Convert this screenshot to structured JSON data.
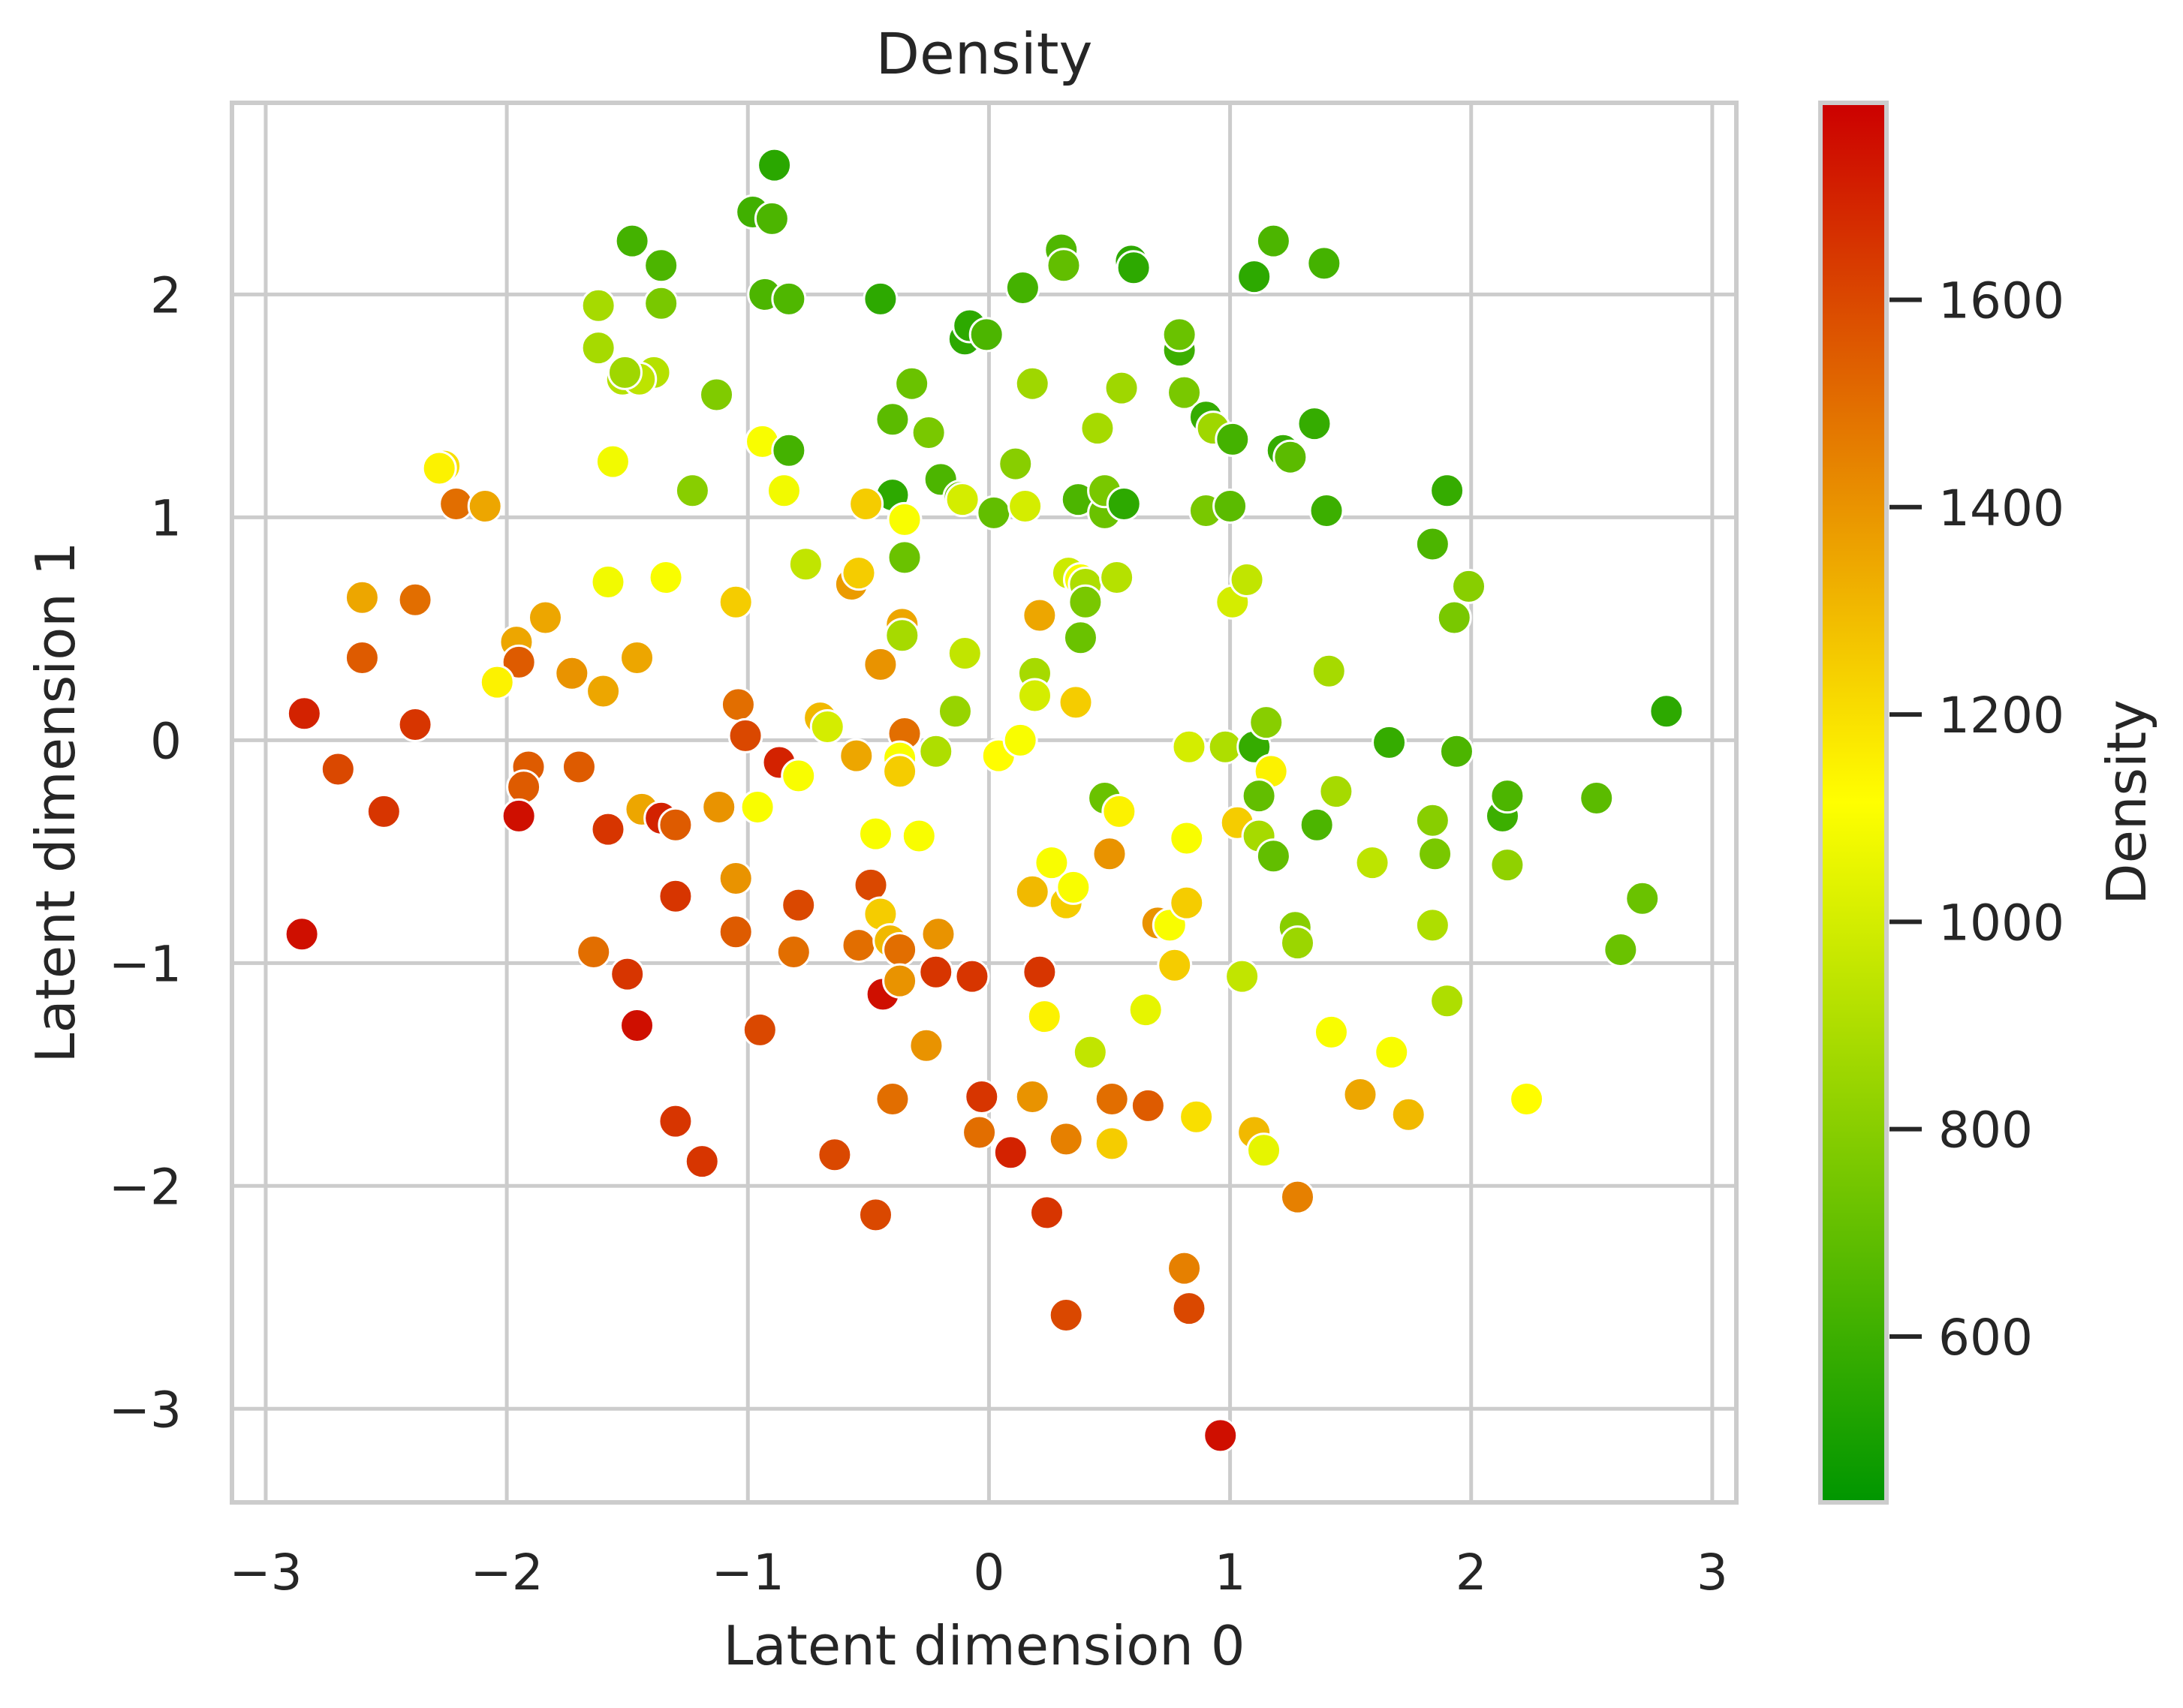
{
  "chart_data": {
    "type": "scatter",
    "title": "Density",
    "xlabel": "Latent dimension 0",
    "ylabel": "Latent dimension 1",
    "xlim": [
      -3.14,
      3.1
    ],
    "ylim": [
      -3.42,
      2.86
    ],
    "xticks": [
      -3,
      -2,
      -1,
      0,
      1,
      2,
      3
    ],
    "xtick_labels": [
      "−3",
      "−2",
      "−1",
      "0",
      "1",
      "2",
      "3"
    ],
    "yticks": [
      -3,
      -2,
      -1,
      0,
      1,
      2
    ],
    "ytick_labels": [
      "−3",
      "−2",
      "−1",
      "0",
      "1",
      "2"
    ],
    "grid": true,
    "colorbar": {
      "label": "Density",
      "range": [
        440,
        1790
      ],
      "ticks": [
        600,
        800,
        1000,
        1200,
        1400,
        1600
      ],
      "tick_labels": [
        "600",
        "800",
        "1000",
        "1200",
        "1400",
        "1600"
      ],
      "colors": [
        "#009600",
        "#ffff00",
        "#cc0000"
      ]
    },
    "series": [
      {
        "points": [
          [
            -0.89,
            2.58,
            550
          ],
          [
            -0.98,
            2.37,
            610
          ],
          [
            -0.9,
            2.34,
            640
          ],
          [
            -1.48,
            2.24,
            620
          ],
          [
            -1.36,
            2.13,
            640
          ],
          [
            -0.93,
            2.0,
            640
          ],
          [
            -0.83,
            1.98,
            650
          ],
          [
            -1.36,
            1.96,
            760
          ],
          [
            -1.62,
            1.95,
            880
          ],
          [
            -0.45,
            1.98,
            560
          ],
          [
            0.3,
            2.2,
            650
          ],
          [
            0.31,
            2.13,
            700
          ],
          [
            0.59,
            2.15,
            560
          ],
          [
            0.6,
            2.12,
            560
          ],
          [
            1.1,
            2.08,
            560
          ],
          [
            1.18,
            2.24,
            640
          ],
          [
            1.39,
            2.14,
            620
          ],
          [
            0.14,
            2.03,
            620
          ],
          [
            -0.1,
            1.8,
            560
          ],
          [
            -0.08,
            1.86,
            560
          ],
          [
            -0.01,
            1.82,
            640
          ],
          [
            -1.62,
            1.76,
            880
          ],
          [
            -1.52,
            1.62,
            920
          ],
          [
            -1.39,
            1.65,
            920
          ],
          [
            -1.45,
            1.62,
            940
          ],
          [
            -1.51,
            1.65,
            860
          ],
          [
            -1.13,
            1.55,
            780
          ],
          [
            -0.32,
            1.6,
            720
          ],
          [
            0.18,
            1.6,
            860
          ],
          [
            0.55,
            1.58,
            860
          ],
          [
            0.79,
            1.75,
            600
          ],
          [
            0.79,
            1.82,
            720
          ],
          [
            0.81,
            1.56,
            760
          ],
          [
            -0.4,
            1.44,
            680
          ],
          [
            -0.25,
            1.38,
            760
          ],
          [
            0.45,
            1.4,
            880
          ],
          [
            0.9,
            1.45,
            580
          ],
          [
            0.93,
            1.4,
            860
          ],
          [
            1.01,
            1.35,
            620
          ],
          [
            1.22,
            1.3,
            580
          ],
          [
            1.25,
            1.27,
            680
          ],
          [
            1.35,
            1.42,
            580
          ],
          [
            -2.26,
            1.23,
            1200
          ],
          [
            -2.28,
            1.22,
            1150
          ],
          [
            -2.21,
            1.06,
            1500
          ],
          [
            -2.09,
            1.05,
            1350
          ],
          [
            -1.56,
            1.25,
            1080
          ],
          [
            -1.23,
            1.12,
            800
          ],
          [
            -0.94,
            1.34,
            1100
          ],
          [
            -0.83,
            1.3,
            620
          ],
          [
            -0.85,
            1.12,
            1080
          ],
          [
            -0.2,
            1.17,
            640
          ],
          [
            -0.4,
            1.1,
            560
          ],
          [
            -0.51,
            1.06,
            1250
          ],
          [
            -0.35,
            0.99,
            1100
          ],
          [
            -0.12,
            1.09,
            700
          ],
          [
            -0.11,
            1.08,
            1000
          ],
          [
            0.02,
            1.02,
            700
          ],
          [
            0.11,
            1.24,
            800
          ],
          [
            0.15,
            1.05,
            1000
          ],
          [
            0.37,
            1.08,
            640
          ],
          [
            0.48,
            1.02,
            720
          ],
          [
            0.48,
            1.12,
            760
          ],
          [
            0.56,
            1.06,
            560
          ],
          [
            0.9,
            1.03,
            760
          ],
          [
            1.0,
            1.05,
            680
          ],
          [
            1.4,
            1.03,
            600
          ],
          [
            1.9,
            1.12,
            580
          ],
          [
            1.84,
            0.88,
            640
          ],
          [
            1.99,
            0.69,
            800
          ],
          [
            1.93,
            0.55,
            760
          ],
          [
            1.41,
            0.31,
            880
          ],
          [
            -2.6,
            0.64,
            1350
          ],
          [
            -2.38,
            0.63,
            1500
          ],
          [
            -1.58,
            0.71,
            1080
          ],
          [
            -1.34,
            0.73,
            1100
          ],
          [
            -1.84,
            0.55,
            1350
          ],
          [
            -1.96,
            0.44,
            1350
          ],
          [
            -1.95,
            0.35,
            1550
          ],
          [
            -2.04,
            0.26,
            1150
          ],
          [
            -1.46,
            0.37,
            1350
          ],
          [
            -1.6,
            0.22,
            1350
          ],
          [
            -1.73,
            0.3,
            1400
          ],
          [
            -2.6,
            0.37,
            1550
          ],
          [
            -2.84,
            0.12,
            1700
          ],
          [
            -2.38,
            0.07,
            1650
          ],
          [
            -1.05,
            0.62,
            1250
          ],
          [
            -0.76,
            0.79,
            950
          ],
          [
            -0.57,
            0.7,
            1380
          ],
          [
            -0.54,
            0.75,
            1250
          ],
          [
            -0.35,
            0.82,
            720
          ],
          [
            -0.36,
            0.52,
            1350
          ],
          [
            -0.36,
            0.47,
            880
          ],
          [
            -0.1,
            0.39,
            950
          ],
          [
            -0.45,
            0.34,
            1400
          ],
          [
            -0.14,
            0.13,
            840
          ],
          [
            0.33,
            0.75,
            980
          ],
          [
            0.38,
            0.72,
            1100
          ],
          [
            0.4,
            0.7,
            900
          ],
          [
            0.4,
            0.62,
            760
          ],
          [
            0.53,
            0.73,
            920
          ],
          [
            0.38,
            0.46,
            720
          ],
          [
            0.19,
            0.3,
            880
          ],
          [
            0.19,
            0.2,
            1000
          ],
          [
            0.21,
            0.56,
            1350
          ],
          [
            0.36,
            0.17,
            1250
          ],
          [
            1.01,
            0.62,
            1000
          ],
          [
            1.07,
            0.72,
            950
          ],
          [
            -1.04,
            0.16,
            1500
          ],
          [
            -1.01,
            0.02,
            1600
          ],
          [
            -0.7,
            0.1,
            1300
          ],
          [
            -0.67,
            0.06,
            1000
          ],
          [
            -0.55,
            -0.07,
            1350
          ],
          [
            -0.35,
            0.03,
            1500
          ],
          [
            -0.37,
            -0.08,
            1100
          ],
          [
            -0.37,
            -0.14,
            1250
          ],
          [
            -0.22,
            -0.05,
            900
          ],
          [
            0.04,
            -0.07,
            1120
          ],
          [
            0.13,
            0.0,
            1100
          ],
          [
            0.83,
            -0.03,
            1000
          ],
          [
            0.98,
            -0.03,
            900
          ],
          [
            1.1,
            -0.03,
            580
          ],
          [
            1.15,
            0.08,
            800
          ],
          [
            1.17,
            -0.14,
            1150
          ],
          [
            1.12,
            -0.25,
            700
          ],
          [
            1.66,
            -0.01,
            580
          ],
          [
            1.94,
            -0.05,
            640
          ],
          [
            2.81,
            0.13,
            560
          ],
          [
            -2.7,
            -0.13,
            1600
          ],
          [
            -2.51,
            -0.32,
            1650
          ],
          [
            -1.91,
            -0.12,
            1550
          ],
          [
            -1.93,
            -0.21,
            1550
          ],
          [
            -1.95,
            -0.34,
            1750
          ],
          [
            -1.7,
            -0.12,
            1550
          ],
          [
            -1.58,
            -0.4,
            1650
          ],
          [
            -1.44,
            -0.31,
            1350
          ],
          [
            -1.36,
            -0.35,
            1700
          ],
          [
            -1.3,
            -0.38,
            1550
          ],
          [
            -1.12,
            -0.3,
            1400
          ],
          [
            -0.96,
            -0.3,
            1100
          ],
          [
            -0.87,
            -0.1,
            1700
          ],
          [
            -0.79,
            -0.16,
            1100
          ],
          [
            -0.47,
            -0.42,
            1100
          ],
          [
            -0.29,
            -0.43,
            1100
          ],
          [
            0.48,
            -0.26,
            720
          ],
          [
            0.54,
            -0.32,
            1150
          ],
          [
            0.82,
            -0.44,
            1100
          ],
          [
            1.03,
            -0.37,
            1250
          ],
          [
            1.12,
            -0.43,
            880
          ],
          [
            1.18,
            -0.52,
            700
          ],
          [
            1.36,
            -0.38,
            640
          ],
          [
            1.44,
            -0.23,
            880
          ],
          [
            1.59,
            -0.55,
            940
          ],
          [
            1.84,
            -0.36,
            800
          ],
          [
            1.85,
            -0.51,
            760
          ],
          [
            2.13,
            -0.34,
            600
          ],
          [
            2.15,
            -0.25,
            640
          ],
          [
            2.15,
            -0.56,
            820
          ],
          [
            2.52,
            -0.26,
            680
          ],
          [
            2.71,
            -0.71,
            720
          ],
          [
            2.62,
            -0.94,
            720
          ],
          [
            -2.85,
            -0.87,
            1750
          ],
          [
            -1.64,
            -0.95,
            1500
          ],
          [
            -1.5,
            -1.05,
            1650
          ],
          [
            -1.46,
            -1.28,
            1750
          ],
          [
            -1.3,
            -0.7,
            1650
          ],
          [
            -1.3,
            -1.71,
            1650
          ],
          [
            -1.19,
            -1.89,
            1650
          ],
          [
            -1.05,
            -0.62,
            1400
          ],
          [
            -1.05,
            -0.86,
            1550
          ],
          [
            -0.95,
            -1.3,
            1600
          ],
          [
            -0.81,
            -0.95,
            1500
          ],
          [
            -0.79,
            -0.74,
            1600
          ],
          [
            -0.64,
            -1.86,
            1600
          ],
          [
            -0.49,
            -0.65,
            1600
          ],
          [
            -0.54,
            -0.92,
            1500
          ],
          [
            -0.45,
            -0.78,
            1250
          ],
          [
            -0.44,
            -1.14,
            1750
          ],
          [
            -0.41,
            -0.9,
            1300
          ],
          [
            -0.37,
            -0.94,
            1500
          ],
          [
            -0.37,
            -1.08,
            1400
          ],
          [
            -0.4,
            -1.61,
            1500
          ],
          [
            -0.47,
            -2.13,
            1600
          ],
          [
            -0.21,
            -0.87,
            1400
          ],
          [
            -0.22,
            -1.04,
            1650
          ],
          [
            -0.26,
            -1.37,
            1400
          ],
          [
            -0.07,
            -1.06,
            1650
          ],
          [
            -0.03,
            -1.6,
            1650
          ],
          [
            -0.04,
            -1.76,
            1500
          ],
          [
            0.09,
            -1.85,
            1700
          ],
          [
            0.18,
            -0.68,
            1300
          ],
          [
            0.21,
            -1.04,
            1650
          ],
          [
            0.18,
            -1.6,
            1400
          ],
          [
            0.23,
            -1.24,
            1150
          ],
          [
            0.26,
            -0.55,
            1100
          ],
          [
            0.32,
            -0.73,
            1250
          ],
          [
            0.35,
            -0.66,
            1100
          ],
          [
            0.32,
            -1.79,
            1450
          ],
          [
            0.24,
            -2.12,
            1650
          ],
          [
            0.32,
            -2.58,
            1600
          ],
          [
            0.42,
            -1.4,
            950
          ],
          [
            0.5,
            -0.51,
            1400
          ],
          [
            0.51,
            -1.61,
            1500
          ],
          [
            0.51,
            -1.81,
            1250
          ],
          [
            0.66,
            -1.64,
            1550
          ],
          [
            0.65,
            -1.21,
            1050
          ],
          [
            0.7,
            -0.82,
            1400
          ],
          [
            0.75,
            -0.83,
            1100
          ],
          [
            0.77,
            -1.01,
            1250
          ],
          [
            0.82,
            -0.73,
            1250
          ],
          [
            0.81,
            -2.37,
            1450
          ],
          [
            0.83,
            -2.55,
            1600
          ],
          [
            0.86,
            -1.69,
            1200
          ],
          [
            0.96,
            -3.12,
            1750
          ],
          [
            1.05,
            -1.06,
            950
          ],
          [
            1.1,
            -1.76,
            1300
          ],
          [
            1.14,
            -1.84,
            1050
          ],
          [
            1.27,
            -0.84,
            800
          ],
          [
            1.28,
            -0.91,
            850
          ],
          [
            1.28,
            -2.05,
            1450
          ],
          [
            1.42,
            -1.31,
            1100
          ],
          [
            1.54,
            -1.59,
            1350
          ],
          [
            1.67,
            -1.4,
            1100
          ],
          [
            1.74,
            -1.68,
            1300
          ],
          [
            1.84,
            -0.83,
            900
          ],
          [
            1.9,
            -1.17,
            900
          ],
          [
            2.23,
            -1.61,
            1120
          ]
        ]
      }
    ]
  }
}
